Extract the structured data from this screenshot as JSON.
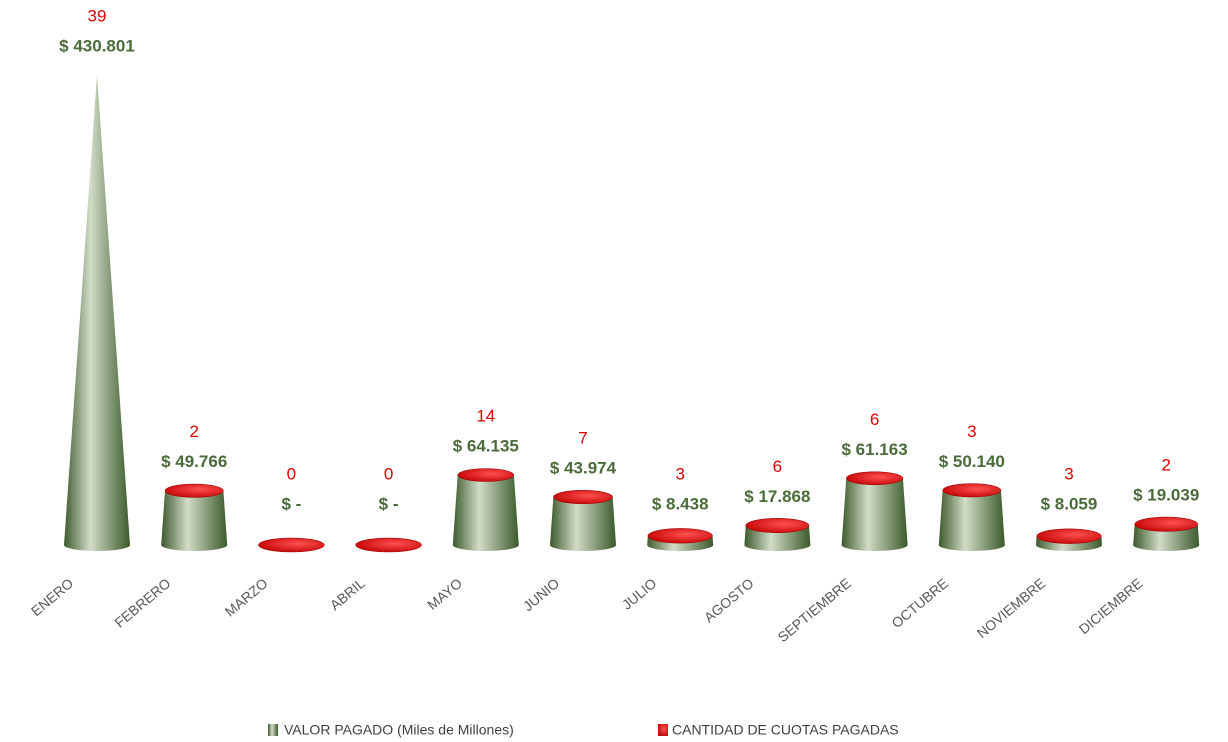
{
  "chart_data": {
    "type": "cone",
    "categories": [
      "ENERO",
      "FEBRERO",
      "MARZO",
      "ABRIL",
      "MAYO",
      "JUNIO",
      "JULIO",
      "AGOSTO",
      "SEPTIEMBRE",
      "OCTUBRE",
      "NOVIEMBRE",
      "DICIEMBRE"
    ],
    "series": [
      {
        "name": "VALOR PAGADO (Miles de Millones)",
        "color": "#4a6b3a",
        "values": [
          430801,
          49766,
          0,
          0,
          64135,
          43974,
          8438,
          17868,
          61163,
          50140,
          8059,
          19039
        ],
        "value_labels": [
          "$ 430.801",
          "$ 49.766",
          "$ -",
          "$ -",
          "$ 64.135",
          "$ 43.974",
          "$ 8.438",
          "$ 17.868",
          "$ 61.163",
          "$ 50.140",
          "$ 8.059",
          "$ 19.039"
        ]
      },
      {
        "name": "CANTIDAD DE CUOTAS PAGADAS",
        "color": "#e00000",
        "values": [
          39,
          2,
          0,
          0,
          14,
          7,
          3,
          6,
          6,
          3,
          3,
          2
        ]
      }
    ]
  }
}
